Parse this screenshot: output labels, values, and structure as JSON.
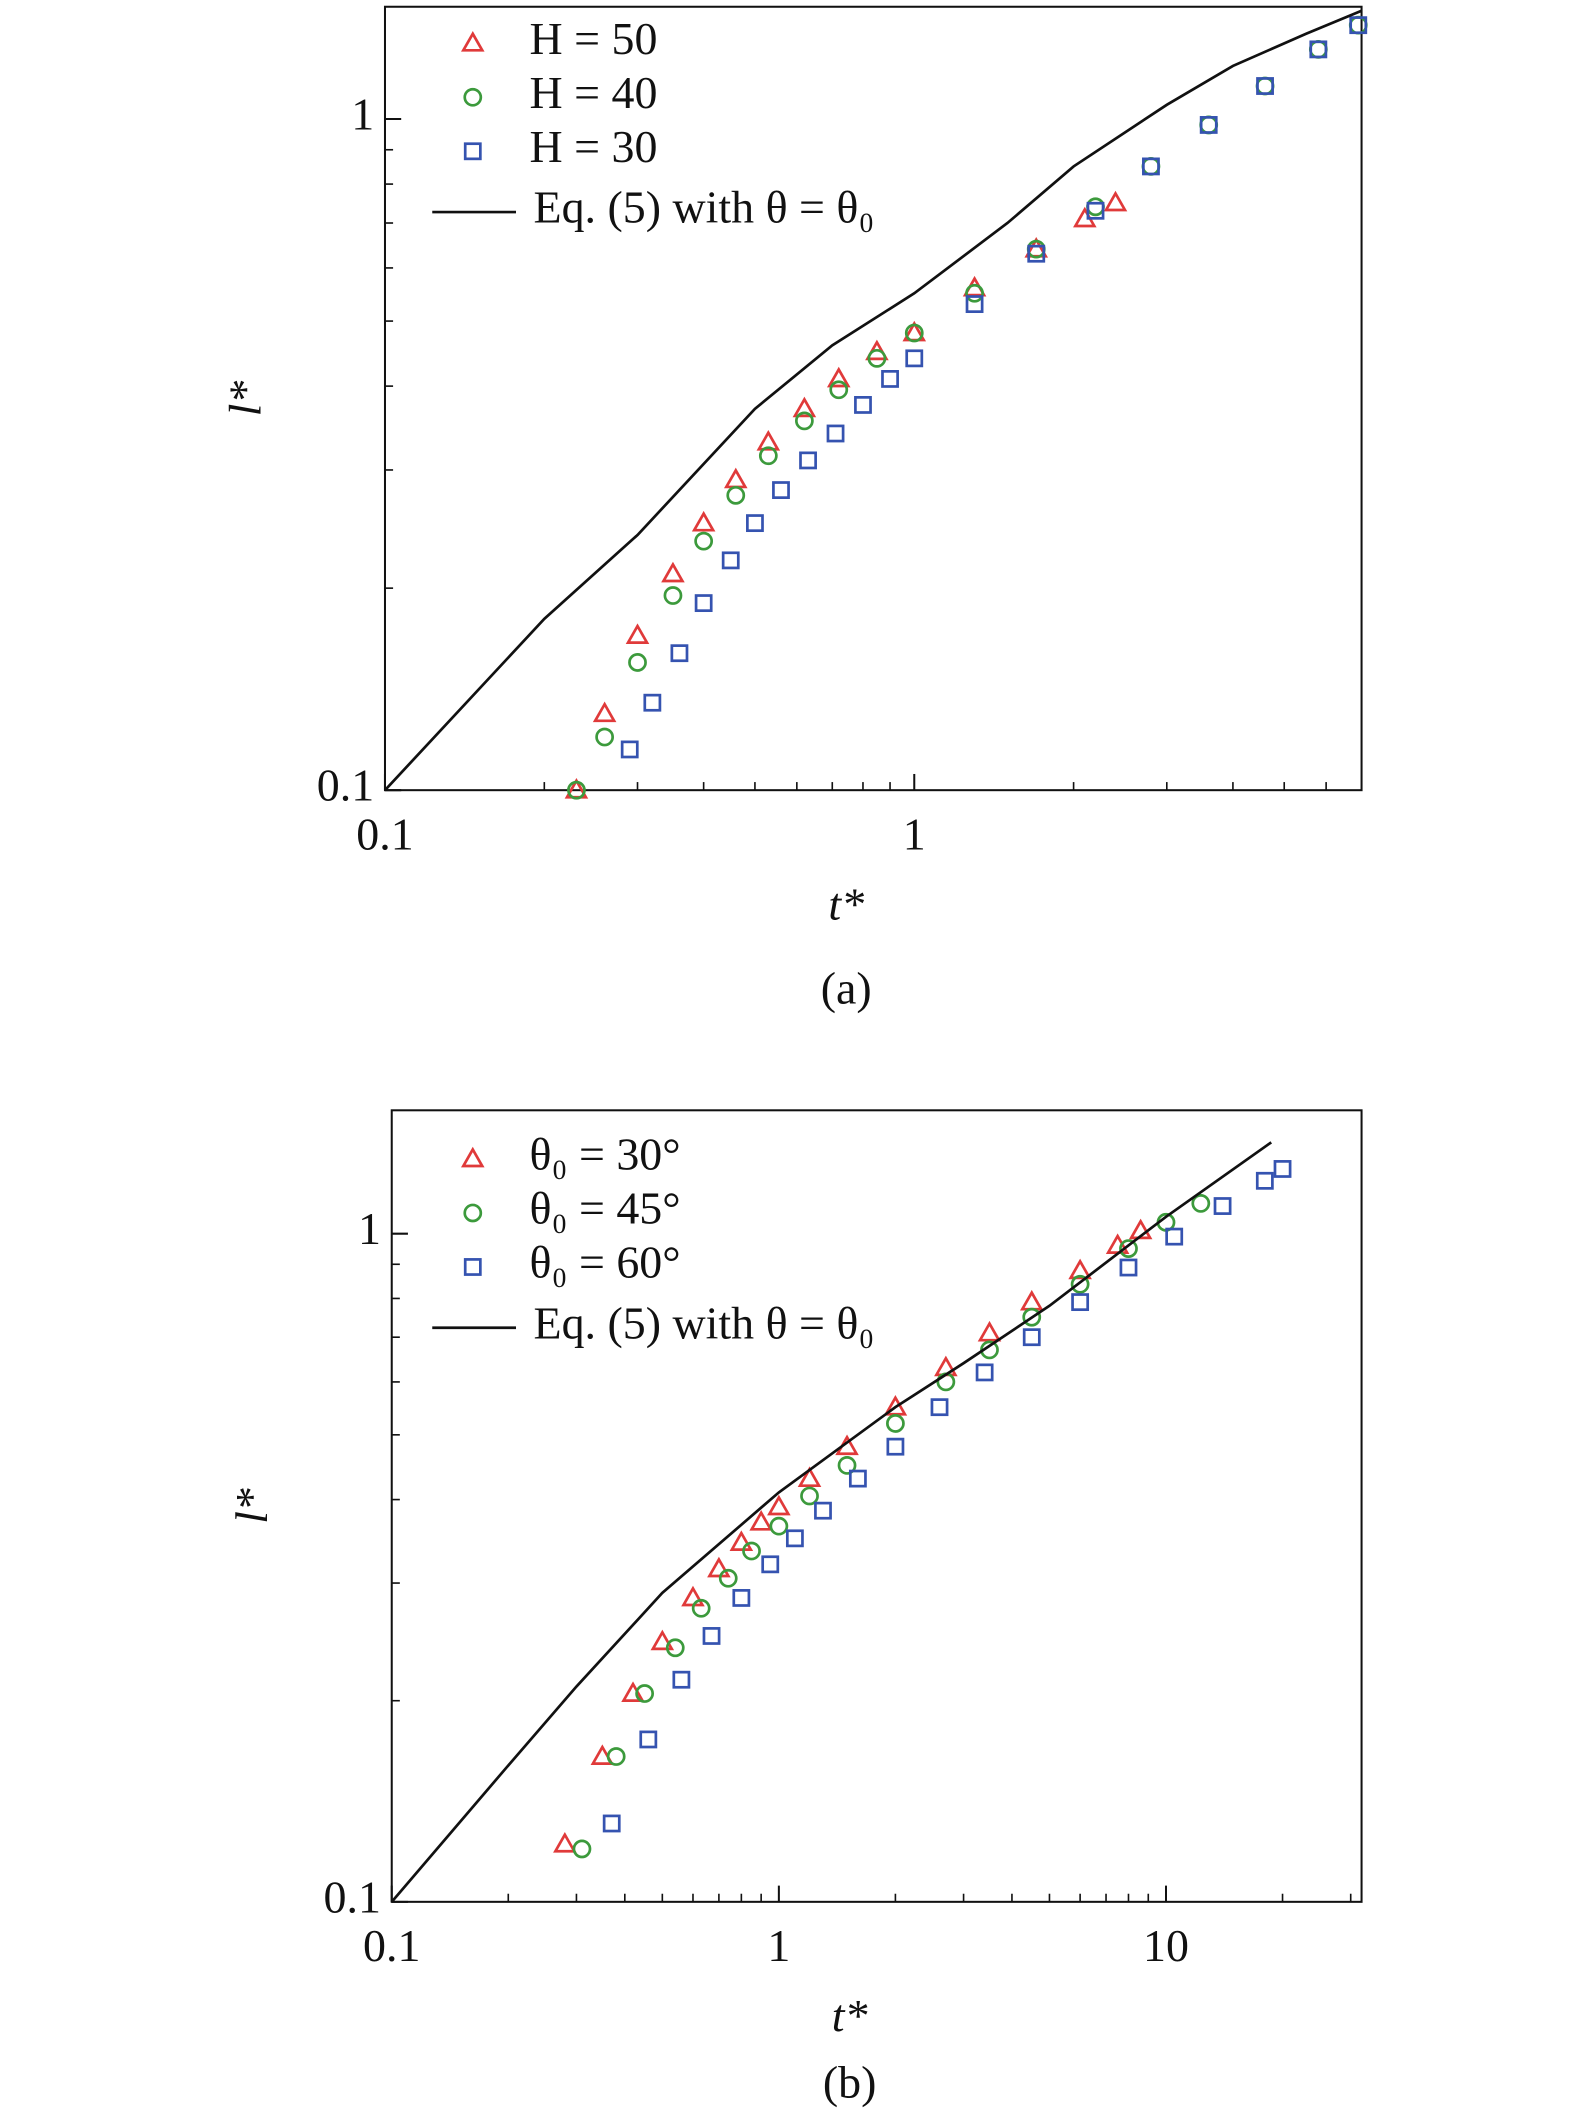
{
  "chart_data": [
    {
      "type": "scatter",
      "caption": "(a)",
      "xlabel": "t*",
      "ylabel": "l*",
      "xscale": "log",
      "yscale": "log",
      "legend": "upper left",
      "xlim": [
        0.1,
        7
      ],
      "ylim": [
        0.1,
        1.47
      ],
      "xticks": [
        0.1,
        1
      ],
      "yticks": [
        0.1,
        1
      ],
      "xminorticks": [
        0.2,
        0.3,
        0.4,
        0.5,
        0.6,
        0.7,
        0.8,
        0.9,
        2,
        3,
        4,
        5,
        6
      ],
      "yminorticks": [
        0.2,
        0.3,
        0.4,
        0.5,
        0.6,
        0.7,
        0.8,
        0.9
      ],
      "series": [
        {
          "name": "H = 50",
          "color": "#e03a3a",
          "marker": "triangle",
          "x": [
            0.23,
            0.26,
            0.3,
            0.35,
            0.4,
            0.46,
            0.53,
            0.62,
            0.72,
            0.85,
            1.0,
            1.3,
            1.7,
            2.1,
            2.4
          ],
          "values": [
            0.1,
            0.13,
            0.17,
            0.21,
            0.25,
            0.29,
            0.33,
            0.37,
            0.41,
            0.45,
            0.48,
            0.56,
            0.64,
            0.71,
            0.75
          ]
        },
        {
          "name": "H = 40",
          "color": "#3c9a3c",
          "marker": "circle",
          "x": [
            0.23,
            0.26,
            0.3,
            0.35,
            0.4,
            0.46,
            0.53,
            0.62,
            0.72,
            0.85,
            1.0,
            1.3,
            1.7,
            2.2,
            2.8,
            3.6,
            4.6,
            5.8,
            6.9
          ],
          "values": [
            0.1,
            0.12,
            0.155,
            0.195,
            0.235,
            0.275,
            0.315,
            0.355,
            0.395,
            0.44,
            0.48,
            0.55,
            0.64,
            0.74,
            0.85,
            0.98,
            1.12,
            1.27,
            1.38
          ]
        },
        {
          "name": "H = 30",
          "color": "#3553b0",
          "marker": "square",
          "x": [
            0.29,
            0.32,
            0.36,
            0.4,
            0.45,
            0.5,
            0.56,
            0.63,
            0.71,
            0.8,
            0.9,
            1.0,
            1.3,
            1.7,
            2.2,
            2.8,
            3.6,
            4.6,
            5.8,
            6.9
          ],
          "values": [
            0.115,
            0.135,
            0.16,
            0.19,
            0.22,
            0.25,
            0.28,
            0.31,
            0.34,
            0.375,
            0.41,
            0.44,
            0.53,
            0.63,
            0.73,
            0.85,
            0.98,
            1.12,
            1.27,
            1.38
          ]
        },
        {
          "name": "Eq. (5) with θ = θ₀",
          "color": "#111111",
          "marker": "line",
          "x": [
            0.1,
            0.2,
            0.3,
            0.5,
            0.7,
            1.0,
            1.5,
            2.0,
            3.0,
            4.0,
            5.5,
            7.0
          ],
          "values": [
            0.1,
            0.18,
            0.24,
            0.37,
            0.46,
            0.55,
            0.7,
            0.85,
            1.05,
            1.2,
            1.34,
            1.45
          ]
        }
      ]
    },
    {
      "type": "scatter",
      "caption": "(b)",
      "xlabel": "t*",
      "ylabel": "l*",
      "xscale": "log",
      "yscale": "log",
      "legend": "upper left",
      "xlim": [
        0.1,
        32
      ],
      "ylim": [
        0.1,
        1.53
      ],
      "xticks": [
        0.1,
        1,
        10
      ],
      "yticks": [
        0.1,
        1
      ],
      "xminorticks": [
        0.2,
        0.3,
        0.4,
        0.5,
        0.6,
        0.7,
        0.8,
        0.9,
        2,
        3,
        4,
        5,
        6,
        7,
        8,
        9,
        20,
        30
      ],
      "yminorticks": [
        0.2,
        0.3,
        0.4,
        0.5,
        0.6,
        0.7,
        0.8,
        0.9
      ],
      "series": [
        {
          "name": "θ₀ = 30°",
          "color": "#e03a3a",
          "marker": "triangle",
          "x": [
            0.28,
            0.35,
            0.42,
            0.5,
            0.6,
            0.7,
            0.8,
            0.9,
            1.0,
            1.2,
            1.5,
            2,
            2.7,
            3.5,
            4.5,
            6,
            7.5,
            8.6
          ],
          "values": [
            0.122,
            0.165,
            0.205,
            0.245,
            0.285,
            0.315,
            0.345,
            0.37,
            0.39,
            0.43,
            0.48,
            0.55,
            0.63,
            0.71,
            0.79,
            0.88,
            0.96,
            1.01
          ]
        },
        {
          "name": "θ₀ = 45°",
          "color": "#3c9a3c",
          "marker": "circle",
          "x": [
            0.31,
            0.38,
            0.45,
            0.54,
            0.63,
            0.74,
            0.85,
            1.0,
            1.2,
            1.5,
            2,
            2.7,
            3.5,
            4.5,
            6,
            8,
            10,
            12.3
          ],
          "values": [
            0.12,
            0.165,
            0.205,
            0.24,
            0.275,
            0.305,
            0.335,
            0.365,
            0.405,
            0.45,
            0.52,
            0.6,
            0.67,
            0.75,
            0.84,
            0.95,
            1.04,
            1.11
          ]
        },
        {
          "name": "θ₀ = 60°",
          "color": "#3553b0",
          "marker": "square",
          "x": [
            0.37,
            0.46,
            0.56,
            0.67,
            0.8,
            0.95,
            1.1,
            1.3,
            1.6,
            2,
            2.6,
            3.4,
            4.5,
            6,
            8,
            10.5,
            14,
            18,
            20
          ],
          "values": [
            0.131,
            0.175,
            0.215,
            0.25,
            0.285,
            0.32,
            0.35,
            0.385,
            0.43,
            0.48,
            0.55,
            0.62,
            0.7,
            0.79,
            0.89,
            0.99,
            1.1,
            1.2,
            1.25
          ]
        },
        {
          "name": "Eq. (5) with θ = θ₀",
          "color": "#111111",
          "marker": "line",
          "x": [
            0.1,
            0.2,
            0.3,
            0.5,
            1.0,
            2.0,
            3.0,
            5.0,
            10,
            18.7
          ],
          "values": [
            0.1,
            0.16,
            0.21,
            0.29,
            0.41,
            0.55,
            0.64,
            0.78,
            1.06,
            1.37
          ]
        }
      ]
    }
  ]
}
